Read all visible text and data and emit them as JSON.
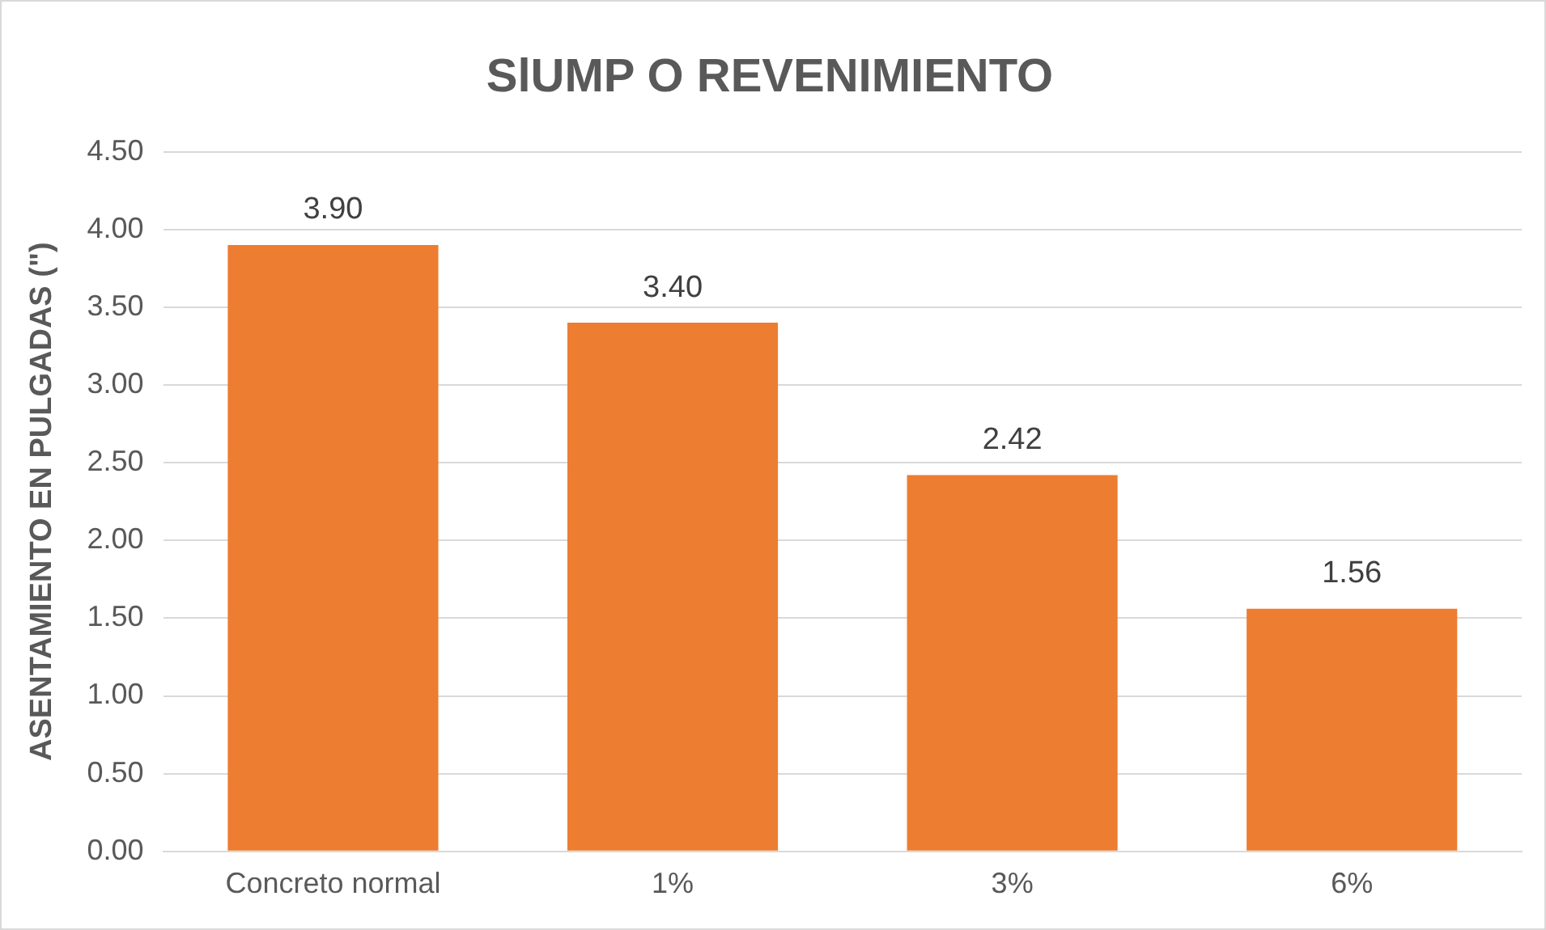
{
  "chart_data": {
    "type": "bar",
    "title": "SlUMP O REVENIMIENTO",
    "ylabel": "ASENTAMIENTO EN PULGADAS (\")",
    "categories": [
      "Concreto normal",
      "1%",
      "3%",
      "6%"
    ],
    "values": [
      3.9,
      3.4,
      2.42,
      1.56
    ],
    "value_labels": [
      "3.90",
      "3.40",
      "2.42",
      "1.56"
    ],
    "color": "#ed7d31",
    "ylim": [
      0,
      4.5
    ],
    "yticks": [
      {
        "value": 0,
        "label": "0.00"
      },
      {
        "value": 0.5,
        "label": "0.50"
      },
      {
        "value": 1,
        "label": "1.00"
      },
      {
        "value": 1.5,
        "label": "1.50"
      },
      {
        "value": 2,
        "label": "2.00"
      },
      {
        "value": 2.5,
        "label": "2.50"
      },
      {
        "value": 3,
        "label": "3.00"
      },
      {
        "value": 3.5,
        "label": "3.50"
      },
      {
        "value": 4,
        "label": "4.00"
      },
      {
        "value": 4.5,
        "label": "4.50"
      }
    ],
    "grid": "y"
  }
}
